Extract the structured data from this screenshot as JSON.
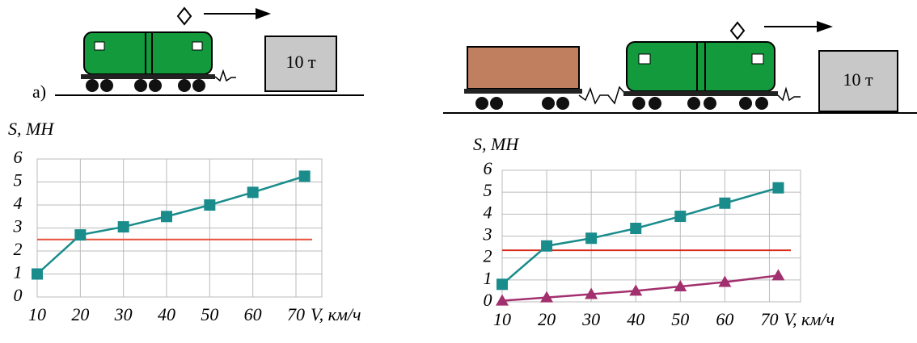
{
  "illustration": {
    "left_label": "a)",
    "left_load": "10 т",
    "right_load": "10 т"
  },
  "chart_data": [
    {
      "type": "line",
      "y_label": "S, МН",
      "x_label": "V, км/ч",
      "x": [
        10,
        20,
        30,
        40,
        50,
        60,
        72
      ],
      "series": [
        {
          "color": "#1a8c8c",
          "marker": "square",
          "values": [
            1.0,
            2.7,
            3.05,
            3.5,
            4.0,
            4.55,
            5.25
          ]
        }
      ],
      "reference_line": {
        "value": 2.5,
        "color": "#e8503a"
      },
      "xlim": [
        10,
        76
      ],
      "ylim": [
        0,
        6
      ],
      "xticks": [
        10,
        20,
        30,
        40,
        50,
        60,
        70
      ],
      "yticks": [
        0,
        1,
        2,
        3,
        4,
        5,
        6
      ],
      "grid": true
    },
    {
      "type": "line",
      "y_label": "S, МН",
      "x_label": "V, км/ч",
      "x": [
        10,
        20,
        30,
        40,
        50,
        60,
        72
      ],
      "series": [
        {
          "color": "#1a8c8c",
          "marker": "square",
          "values": [
            0.8,
            2.55,
            2.9,
            3.35,
            3.9,
            4.5,
            5.2
          ]
        },
        {
          "color": "#a3306e",
          "marker": "triangle",
          "values": [
            0.05,
            0.2,
            0.35,
            0.5,
            0.7,
            0.9,
            1.2
          ]
        }
      ],
      "reference_line": {
        "value": 2.35,
        "color": "#d82a1a"
      },
      "xlim": [
        10,
        77
      ],
      "ylim": [
        0,
        6
      ],
      "xticks": [
        10,
        20,
        30,
        40,
        50,
        60,
        70
      ],
      "yticks": [
        0,
        1,
        2,
        3,
        4,
        5,
        6
      ],
      "grid": true
    }
  ]
}
